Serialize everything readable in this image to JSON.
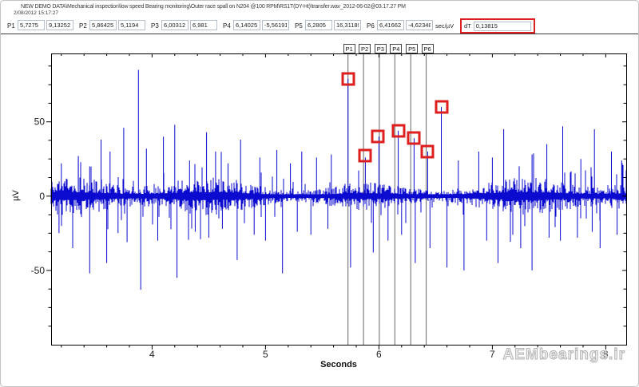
{
  "header": {
    "file_path": "NEW DEMO DATA\\Mechanical inspection\\low speed Bearing monitoring\\Outer race spall on N204 @100 RPM\\RS1T(DY-Ht)\\transfer.wav_2012-06-02@03.17.27 PM",
    "datetime": "2/08/2012 15:17:27",
    "markers": [
      {
        "label": "P1",
        "time": "5,7275",
        "value": "9,13252"
      },
      {
        "label": "P2",
        "time": "5,86425",
        "value": "5,1194"
      },
      {
        "label": "P3",
        "time": "6,00312",
        "value": "6,981"
      },
      {
        "label": "P4",
        "time": "6,14025",
        "value": "-5,56191"
      },
      {
        "label": "P5",
        "time": "6,2805",
        "value": "16,31189"
      },
      {
        "label": "P6",
        "time": "6,41662",
        "value": "-4,62348"
      }
    ],
    "unit_label": "sec/µV",
    "dt_label": "dT",
    "dt_value": "0,13815",
    "highlight_color": "#dd1f1f"
  },
  "chart_data": {
    "type": "line",
    "title": "",
    "xlabel": "Seconds",
    "ylabel": "µV",
    "xlim": [
      3.11,
      8.18
    ],
    "ylim": [
      -100,
      96
    ],
    "x_major_ticks": [
      4,
      5,
      6,
      7,
      8
    ],
    "x_minor_step": 0.2,
    "y_major_ticks": [
      -50,
      0,
      50
    ],
    "y_minor_step": 12.5,
    "grid": false,
    "line_color": "#0b0bcf",
    "cursor_color": "#666666",
    "marker_box_color": "#dd1f1f",
    "cursors": [
      {
        "label": "P1",
        "sec": 5.7275
      },
      {
        "label": "P2",
        "sec": 5.86425
      },
      {
        "label": "P3",
        "sec": 6.00312
      },
      {
        "label": "P4",
        "sec": 6.14025
      },
      {
        "label": "P5",
        "sec": 6.2805
      },
      {
        "label": "P6",
        "sec": 6.41662
      }
    ],
    "peak_markers": [
      {
        "sec": 5.7275,
        "uv": 79
      },
      {
        "sec": 5.88,
        "uv": 27
      },
      {
        "sec": 5.99,
        "uv": 40
      },
      {
        "sec": 6.17,
        "uv": 44
      },
      {
        "sec": 6.31,
        "uv": 39
      },
      {
        "sec": 6.43,
        "uv": 30
      },
      {
        "sec": 6.55,
        "uv": 60
      }
    ],
    "spikes": [
      [
        3.2,
        22
      ],
      [
        3.35,
        27
      ],
      [
        3.45,
        20
      ],
      [
        3.55,
        38
      ],
      [
        3.63,
        30
      ],
      [
        3.75,
        46
      ],
      [
        3.88,
        85
      ],
      [
        3.95,
        32
      ],
      [
        4.1,
        40
      ],
      [
        4.2,
        48
      ],
      [
        4.33,
        24
      ],
      [
        4.48,
        43
      ],
      [
        4.56,
        30
      ],
      [
        4.67,
        22
      ],
      [
        4.78,
        38
      ],
      [
        4.95,
        26
      ],
      [
        5.1,
        31
      ],
      [
        5.22,
        22
      ],
      [
        5.32,
        30
      ],
      [
        5.45,
        26
      ],
      [
        5.58,
        28
      ],
      [
        5.7275,
        79
      ],
      [
        5.88,
        26
      ],
      [
        6.0,
        40
      ],
      [
        6.17,
        44
      ],
      [
        6.31,
        39
      ],
      [
        6.43,
        30
      ],
      [
        6.55,
        60
      ],
      [
        6.7,
        24
      ],
      [
        6.88,
        30
      ],
      [
        7.0,
        26
      ],
      [
        7.1,
        45
      ],
      [
        7.35,
        28
      ],
      [
        7.48,
        35
      ],
      [
        7.62,
        47
      ],
      [
        7.78,
        25
      ],
      [
        7.9,
        45
      ],
      [
        8.05,
        30
      ],
      [
        8.14,
        24
      ],
      [
        3.18,
        -25
      ],
      [
        3.3,
        -35
      ],
      [
        3.45,
        -52
      ],
      [
        3.6,
        -45
      ],
      [
        3.7,
        -25
      ],
      [
        3.78,
        -31
      ],
      [
        3.9,
        -63
      ],
      [
        4.05,
        -30
      ],
      [
        4.22,
        -55
      ],
      [
        4.38,
        -24
      ],
      [
        4.5,
        -28
      ],
      [
        4.62,
        -22
      ],
      [
        4.75,
        -43
      ],
      [
        4.9,
        -26
      ],
      [
        5.0,
        -30
      ],
      [
        5.15,
        -52
      ],
      [
        5.28,
        -24
      ],
      [
        5.4,
        -26
      ],
      [
        5.55,
        -22
      ],
      [
        5.75,
        -48
      ],
      [
        5.95,
        -38
      ],
      [
        6.08,
        -30
      ],
      [
        6.2,
        -26
      ],
      [
        6.32,
        -45
      ],
      [
        6.45,
        -35
      ],
      [
        6.6,
        -48
      ],
      [
        6.75,
        -50
      ],
      [
        6.95,
        -30
      ],
      [
        7.05,
        -45
      ],
      [
        7.18,
        -26
      ],
      [
        7.25,
        -35
      ],
      [
        7.35,
        -50
      ],
      [
        7.5,
        -28
      ],
      [
        7.6,
        -30
      ],
      [
        7.75,
        -28
      ],
      [
        7.88,
        -24
      ],
      [
        7.95,
        -35
      ],
      [
        8.1,
        -26
      ]
    ],
    "noise": {
      "seed": 11,
      "base_uv": 9,
      "burst_uv": 24
    }
  },
  "watermark": {
    "text": "AEMbearings.ir"
  }
}
